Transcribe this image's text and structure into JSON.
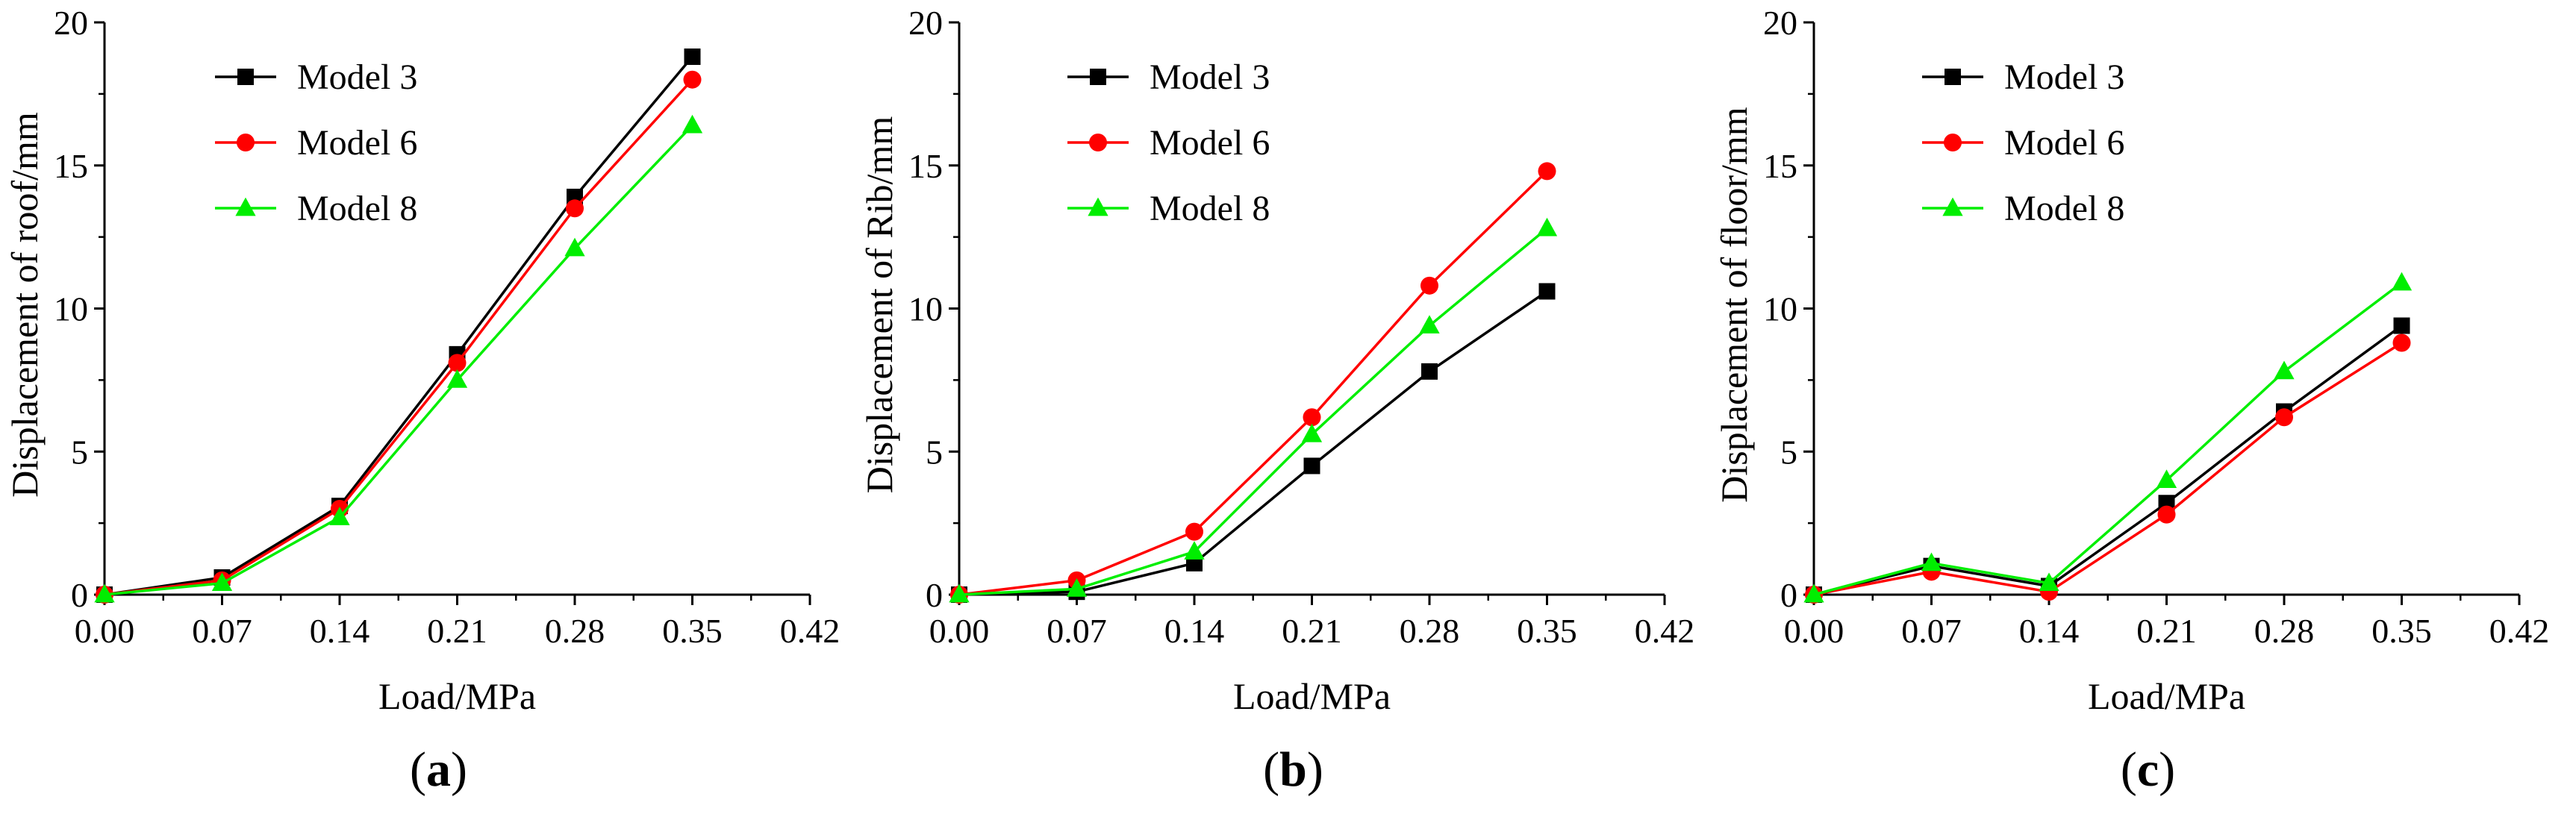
{
  "colors": {
    "model3": "#000000",
    "model6": "#ff0000",
    "model8": "#00ee00",
    "axis": "#000000"
  },
  "chart_data": [
    {
      "type": "line",
      "panel_label": {
        "open": "(",
        "letter": "a",
        "close": ")"
      },
      "x": [
        0.0,
        0.07,
        0.14,
        0.21,
        0.28,
        0.35
      ],
      "xlim": [
        0,
        0.42
      ],
      "ylim": [
        0,
        20
      ],
      "x_ticks": [
        "0.00",
        "0.07",
        "0.14",
        "0.21",
        "0.28",
        "0.35",
        "0.42"
      ],
      "y_ticks": [
        "0",
        "5",
        "10",
        "15",
        "20"
      ],
      "xlabel": "Load/MPa",
      "ylabel": "Displacement of roof/mm",
      "legend_position": "top-left",
      "series": [
        {
          "name": "Model 3",
          "marker": "square",
          "color": "#000000",
          "values": [
            0.0,
            0.6,
            3.1,
            8.4,
            13.9,
            18.8
          ]
        },
        {
          "name": "Model 6",
          "marker": "circle",
          "color": "#ff0000",
          "values": [
            0.0,
            0.5,
            3.0,
            8.1,
            13.5,
            18.0
          ]
        },
        {
          "name": "Model 8",
          "marker": "triangle",
          "color": "#00ee00",
          "values": [
            0.0,
            0.4,
            2.7,
            7.5,
            12.1,
            16.4
          ]
        }
      ]
    },
    {
      "type": "line",
      "panel_label": {
        "open": "(",
        "letter": "b",
        "close": ")"
      },
      "x": [
        0.0,
        0.07,
        0.14,
        0.21,
        0.28,
        0.35
      ],
      "xlim": [
        0,
        0.42
      ],
      "ylim": [
        0,
        20
      ],
      "x_ticks": [
        "0.00",
        "0.07",
        "0.14",
        "0.21",
        "0.28",
        "0.35",
        "0.42"
      ],
      "y_ticks": [
        "0",
        "5",
        "10",
        "15",
        "20"
      ],
      "xlabel": "Load/MPa",
      "ylabel": "Displacement of Rib/mm",
      "legend_position": "top-left",
      "series": [
        {
          "name": "Model 3",
          "marker": "square",
          "color": "#000000",
          "values": [
            0.0,
            0.1,
            1.1,
            4.5,
            7.8,
            10.6
          ]
        },
        {
          "name": "Model 6",
          "marker": "circle",
          "color": "#ff0000",
          "values": [
            0.0,
            0.5,
            2.2,
            6.2,
            10.8,
            14.8
          ]
        },
        {
          "name": "Model 8",
          "marker": "triangle",
          "color": "#00ee00",
          "values": [
            0.0,
            0.2,
            1.5,
            5.6,
            9.4,
            12.8
          ]
        }
      ]
    },
    {
      "type": "line",
      "panel_label": {
        "open": "(",
        "letter": "c",
        "close": ")"
      },
      "x": [
        0.0,
        0.07,
        0.14,
        0.21,
        0.28,
        0.35
      ],
      "xlim": [
        0,
        0.42
      ],
      "ylim": [
        0,
        20
      ],
      "x_ticks": [
        "0.00",
        "0.07",
        "0.14",
        "0.21",
        "0.28",
        "0.35",
        "0.42"
      ],
      "y_ticks": [
        "0",
        "5",
        "10",
        "15",
        "20"
      ],
      "xlabel": "Load/MPa",
      "ylabel": "Displacement of floor/mm",
      "legend_position": "top-left",
      "series": [
        {
          "name": "Model 3",
          "marker": "square",
          "color": "#000000",
          "values": [
            0.0,
            1.0,
            0.3,
            3.2,
            6.4,
            9.4
          ]
        },
        {
          "name": "Model 6",
          "marker": "circle",
          "color": "#ff0000",
          "values": [
            0.0,
            0.8,
            0.1,
            2.8,
            6.2,
            8.8
          ]
        },
        {
          "name": "Model 8",
          "marker": "triangle",
          "color": "#00ee00",
          "values": [
            0.0,
            1.1,
            0.4,
            4.0,
            7.8,
            10.9
          ]
        }
      ]
    }
  ]
}
